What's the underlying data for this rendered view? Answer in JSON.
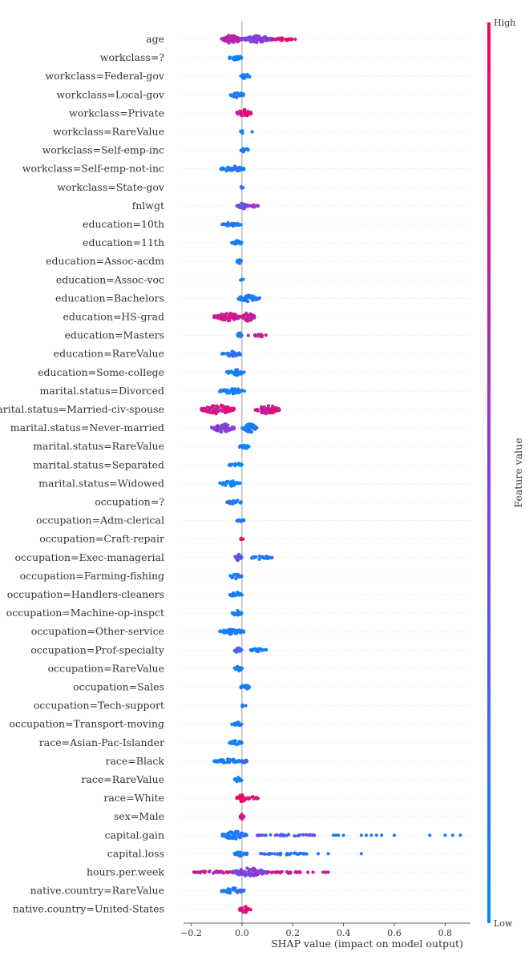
{
  "chart_data": {
    "type": "scatter",
    "title": "",
    "xlabel": "SHAP value (impact on model output)",
    "ylabel": "",
    "xlim": [
      -0.23,
      0.9
    ],
    "xticks": [
      -0.2,
      0.0,
      0.2,
      0.4,
      0.6,
      0.8
    ],
    "xtick_labels": [
      "−0.2",
      "0.0",
      "0.2",
      "0.4",
      "0.6",
      "0.8"
    ],
    "colorbar": {
      "label": "Feature value",
      "high_label": "High",
      "low_label": "Low",
      "low_color": "#008bfb",
      "high_color": "#ff0052"
    },
    "features": [
      {
        "name": "age",
        "ranges": [
          [
            -0.08,
            0.0,
            0.65,
            2.6
          ],
          [
            0.0,
            0.12,
            0.5,
            2.2
          ],
          [
            0.12,
            0.2,
            0.85,
            1.0
          ]
        ],
        "outliers": [
          [
            0.21,
            0.7
          ]
        ]
      },
      {
        "name": "workclass=?",
        "ranges": [
          [
            -0.05,
            0.0,
            0.05,
            1.6
          ]
        ],
        "outliers": []
      },
      {
        "name": "workclass=Federal-gov",
        "ranges": [
          [
            -0.005,
            0.03,
            0.05,
            1.6
          ]
        ],
        "outliers": []
      },
      {
        "name": "workclass=Local-gov",
        "ranges": [
          [
            -0.05,
            0.01,
            0.05,
            1.6
          ]
        ],
        "outliers": []
      },
      {
        "name": "workclass=Private",
        "ranges": [
          [
            -0.02,
            0.04,
            0.9,
            2.2
          ]
        ],
        "outliers": []
      },
      {
        "name": "workclass=RareValue",
        "ranges": [
          [
            -0.005,
            0.005,
            0.05,
            1.4
          ]
        ],
        "outliers": [
          [
            0.04,
            0.1
          ]
        ]
      },
      {
        "name": "workclass=Self-emp-inc",
        "ranges": [
          [
            -0.005,
            0.03,
            0.1,
            1.5
          ]
        ],
        "outliers": []
      },
      {
        "name": "workclass=Self-emp-not-inc",
        "ranges": [
          [
            -0.085,
            0.01,
            0.1,
            1.7
          ]
        ],
        "outliers": []
      },
      {
        "name": "workclass=State-gov",
        "ranges": [
          [
            -0.005,
            0.005,
            0.1,
            1.4
          ]
        ],
        "outliers": []
      },
      {
        "name": "fnlwgt",
        "ranges": [
          [
            -0.02,
            0.03,
            0.5,
            1.8
          ],
          [
            0.03,
            0.065,
            0.6,
            0.9
          ]
        ],
        "outliers": []
      },
      {
        "name": "education=10th",
        "ranges": [
          [
            -0.08,
            0.0,
            0.05,
            1.2
          ]
        ],
        "outliers": []
      },
      {
        "name": "education=11th",
        "ranges": [
          [
            -0.04,
            0.0,
            0.05,
            1.4
          ]
        ],
        "outliers": []
      },
      {
        "name": "education=Assoc-acdm",
        "ranges": [
          [
            -0.02,
            0.0,
            0.05,
            1.4
          ]
        ],
        "outliers": []
      },
      {
        "name": "education=Assoc-voc",
        "ranges": [
          [
            -0.005,
            0.005,
            0.05,
            1.4
          ]
        ],
        "outliers": []
      },
      {
        "name": "education=Bachelors",
        "ranges": [
          [
            -0.02,
            0.07,
            0.1,
            1.8
          ]
        ],
        "outliers": []
      },
      {
        "name": "education=HS-grad",
        "ranges": [
          [
            -0.11,
            0.0,
            0.8,
            2.2
          ],
          [
            0.0,
            0.05,
            0.8,
            2.6
          ]
        ],
        "outliers": []
      },
      {
        "name": "education=Masters",
        "ranges": [
          [
            -0.02,
            0.0,
            0.1,
            1.6
          ],
          [
            0.05,
            0.1,
            0.8,
            1.0
          ]
        ],
        "outliers": [
          [
            0.025,
            0.5
          ]
        ]
      },
      {
        "name": "education=RareValue",
        "ranges": [
          [
            -0.08,
            0.0,
            0.15,
            1.5
          ]
        ],
        "outliers": []
      },
      {
        "name": "education=Some-college",
        "ranges": [
          [
            -0.06,
            0.01,
            0.05,
            1.8
          ]
        ],
        "outliers": []
      },
      {
        "name": "marital.status=Divorced",
        "ranges": [
          [
            -0.09,
            0.01,
            0.05,
            1.6
          ]
        ],
        "outliers": []
      },
      {
        "name": "marital.status=Married-civ-spouse",
        "ranges": [
          [
            -0.16,
            -0.03,
            0.8,
            2.7
          ],
          [
            0.05,
            0.15,
            0.8,
            2.6
          ]
        ],
        "outliers": []
      },
      {
        "name": "marital.status=Never-married",
        "ranges": [
          [
            -0.12,
            -0.03,
            0.5,
            2.4
          ],
          [
            0.0,
            0.06,
            0.1,
            2.6
          ]
        ],
        "outliers": []
      },
      {
        "name": "marital.status=RareValue",
        "ranges": [
          [
            -0.01,
            0.03,
            0.05,
            1.5
          ]
        ],
        "outliers": []
      },
      {
        "name": "marital.status=Separated",
        "ranges": [
          [
            -0.05,
            0.0,
            0.05,
            1.4
          ]
        ],
        "outliers": []
      },
      {
        "name": "marital.status=Widowed",
        "ranges": [
          [
            -0.09,
            0.0,
            0.05,
            1.5
          ]
        ],
        "outliers": []
      },
      {
        "name": "occupation=?",
        "ranges": [
          [
            -0.06,
            0.0,
            0.05,
            1.5
          ]
        ],
        "outliers": []
      },
      {
        "name": "occupation=Adm-clerical",
        "ranges": [
          [
            -0.02,
            0.01,
            0.05,
            1.4
          ]
        ],
        "outliers": []
      },
      {
        "name": "occupation=Craft-repair",
        "ranges": [
          [
            -0.005,
            0.005,
            0.9,
            1.4
          ]
        ],
        "outliers": []
      },
      {
        "name": "occupation=Exec-managerial",
        "ranges": [
          [
            -0.03,
            0.0,
            0.3,
            2.0
          ],
          [
            0.03,
            0.12,
            0.1,
            1.0
          ]
        ],
        "outliers": []
      },
      {
        "name": "occupation=Farming-fishing",
        "ranges": [
          [
            -0.05,
            0.0,
            0.05,
            1.5
          ]
        ],
        "outliers": []
      },
      {
        "name": "occupation=Handlers-cleaners",
        "ranges": [
          [
            -0.05,
            0.0,
            0.05,
            1.5
          ]
        ],
        "outliers": []
      },
      {
        "name": "occupation=Machine-op-inspct",
        "ranges": [
          [
            -0.04,
            0.0,
            0.05,
            1.5
          ]
        ],
        "outliers": []
      },
      {
        "name": "occupation=Other-service",
        "ranges": [
          [
            -0.09,
            0.01,
            0.05,
            1.6
          ]
        ],
        "outliers": []
      },
      {
        "name": "occupation=Prof-specialty",
        "ranges": [
          [
            -0.03,
            0.0,
            0.3,
            2.0
          ],
          [
            0.03,
            0.1,
            0.1,
            1.0
          ]
        ],
        "outliers": []
      },
      {
        "name": "occupation=RareValue",
        "ranges": [
          [
            -0.03,
            0.0,
            0.05,
            1.4
          ]
        ],
        "outliers": []
      },
      {
        "name": "occupation=Sales",
        "ranges": [
          [
            -0.005,
            0.03,
            0.05,
            1.5
          ]
        ],
        "outliers": []
      },
      {
        "name": "occupation=Tech-support",
        "ranges": [
          [
            -0.005,
            0.005,
            0.05,
            1.4
          ]
        ],
        "outliers": [
          [
            0.015,
            0.1
          ]
        ]
      },
      {
        "name": "occupation=Transport-moving",
        "ranges": [
          [
            -0.04,
            0.0,
            0.05,
            1.5
          ]
        ],
        "outliers": []
      },
      {
        "name": "race=Asian-Pac-Islander",
        "ranges": [
          [
            -0.05,
            0.0,
            0.05,
            1.4
          ]
        ],
        "outliers": []
      },
      {
        "name": "race=Black",
        "ranges": [
          [
            -0.11,
            0.0,
            0.05,
            1.4
          ],
          [
            0.0,
            0.02,
            0.3,
            1.6
          ]
        ],
        "outliers": []
      },
      {
        "name": "race=RareValue",
        "ranges": [
          [
            -0.03,
            0.0,
            0.05,
            1.4
          ]
        ],
        "outliers": []
      },
      {
        "name": "race=White",
        "ranges": [
          [
            -0.02,
            0.02,
            0.9,
            2.2
          ],
          [
            0.02,
            0.065,
            0.9,
            1.0
          ]
        ],
        "outliers": []
      },
      {
        "name": "sex=Male",
        "ranges": [
          [
            -0.01,
            0.01,
            0.9,
            1.6
          ]
        ],
        "outliers": []
      },
      {
        "name": "capital.gain",
        "ranges": [
          [
            -0.08,
            0.02,
            0.1,
            2.4
          ],
          [
            0.06,
            0.3,
            0.3,
            0.5
          ]
        ],
        "outliers": [
          [
            0.36,
            0.1
          ],
          [
            0.37,
            0.1
          ],
          [
            0.38,
            0.1
          ],
          [
            0.4,
            0.1
          ],
          [
            0.47,
            0.1
          ],
          [
            0.49,
            0.1
          ],
          [
            0.51,
            0.1
          ],
          [
            0.53,
            0.1
          ],
          [
            0.55,
            0.1
          ],
          [
            0.6,
            0.1
          ],
          [
            0.74,
            0.1
          ],
          [
            0.8,
            0.1
          ],
          [
            0.83,
            0.1
          ],
          [
            0.86,
            0.1
          ]
        ]
      },
      {
        "name": "capital.loss",
        "ranges": [
          [
            -0.03,
            0.02,
            0.1,
            1.6
          ],
          [
            0.07,
            0.26,
            0.1,
            0.6
          ]
        ],
        "outliers": [
          [
            0.3,
            0.1
          ],
          [
            0.34,
            0.1
          ],
          [
            0.47,
            0.1
          ]
        ]
      },
      {
        "name": "hours.per.week",
        "ranges": [
          [
            -0.19,
            -0.03,
            0.7,
            0.8
          ],
          [
            -0.04,
            0.1,
            0.45,
            2.6
          ],
          [
            0.1,
            0.23,
            0.8,
            0.7
          ]
        ],
        "outliers": [
          [
            0.28,
            0.8
          ],
          [
            0.32,
            0.9
          ],
          [
            0.33,
            0.8
          ],
          [
            0.34,
            0.7
          ],
          [
            0.26,
            0.8
          ]
        ]
      },
      {
        "name": "native.country=RareValue",
        "ranges": [
          [
            -0.08,
            0.01,
            0.15,
            1.6
          ]
        ],
        "outliers": []
      },
      {
        "name": "native.country=United-States",
        "ranges": [
          [
            -0.01,
            0.035,
            0.9,
            2.0
          ]
        ],
        "outliers": []
      }
    ]
  }
}
